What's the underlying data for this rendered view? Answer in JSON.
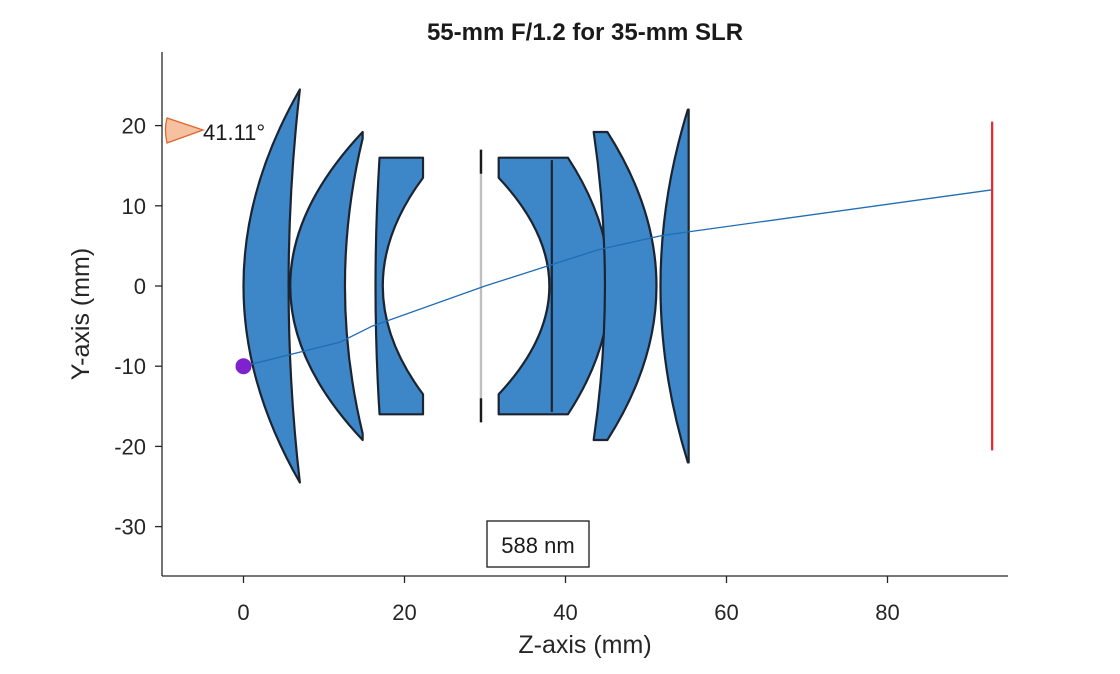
{
  "chart_data": {
    "type": "diagram",
    "title": "55-mm F/1.2 for 35-mm SLR",
    "xlabel": "Z-axis (mm)",
    "ylabel": "Y-axis (mm)",
    "xlim": [
      -10,
      95
    ],
    "ylim": [
      -36,
      29
    ],
    "xticks": [
      0,
      20,
      40,
      60,
      80
    ],
    "yticks": [
      20,
      10,
      0,
      -10,
      -20,
      -30
    ],
    "wavelength_label": "588 nm",
    "field_angle_label": "41.11°",
    "colors": {
      "lens_fill": "#3d87c8",
      "lens_stroke": "#1b2430",
      "ray": "#1f6db5",
      "image_plane": "#e8262b",
      "object_point": "#7e22ce",
      "field_marker": "#f6c1a0",
      "stop": "#bfbfbf"
    },
    "object_point": {
      "z": 0,
      "y": -10
    },
    "image_plane": {
      "z": 93,
      "y_min": -20.5,
      "y_max": 20.5
    },
    "aperture_stop": {
      "z": 29.5,
      "half_height": 17,
      "clear_half_height": 14
    },
    "chief_ray": [
      [
        0,
        -10
      ],
      [
        12,
        -7
      ],
      [
        16,
        -5
      ],
      [
        30,
        0
      ],
      [
        44,
        4.5
      ],
      [
        52,
        6.3
      ],
      [
        93,
        12
      ]
    ],
    "elements": [
      {
        "name": "lens-1",
        "front": {
          "vertex": 0,
          "edge": 7,
          "h": 24.5
        },
        "back": {
          "vertex": 5.6,
          "edge": 7,
          "h": 24.5
        }
      },
      {
        "name": "lens-2",
        "front": {
          "vertex": 5.8,
          "edge": 14.8,
          "h": 19.2
        },
        "back": {
          "vertex": 12.6,
          "edge": 14.8,
          "h": 19.2
        },
        "flat_to": 14.8
      },
      {
        "name": "lens-3",
        "front": {
          "vertex": 16.5,
          "edge": 16.9,
          "h": 16
        },
        "back": {
          "vertex": 16.5,
          "edge": 22.3,
          "h": 16
        },
        "inner_h": 13.5,
        "flat_to": 22.3
      },
      {
        "name": "lens-4",
        "front": {
          "vertex": 37,
          "edge": 31.7,
          "h": 16
        },
        "back": {
          "vertex": 45.5,
          "edge": 40.3,
          "h": 16
        },
        "inner_h": 13.5,
        "flat_to": 31.7
      },
      {
        "name": "lens-5",
        "front": {
          "vertex": 44.9,
          "edge": 43.5,
          "h": 19.2
        },
        "back": {
          "vertex": 51.3,
          "edge": 45.2,
          "h": 19.2
        }
      },
      {
        "name": "lens-6",
        "front": {
          "vertex": 51.8,
          "edge": 55.2,
          "h": 22
        },
        "back": {
          "vertex": 55.3,
          "edge": 55.3,
          "h": 22
        }
      }
    ]
  }
}
